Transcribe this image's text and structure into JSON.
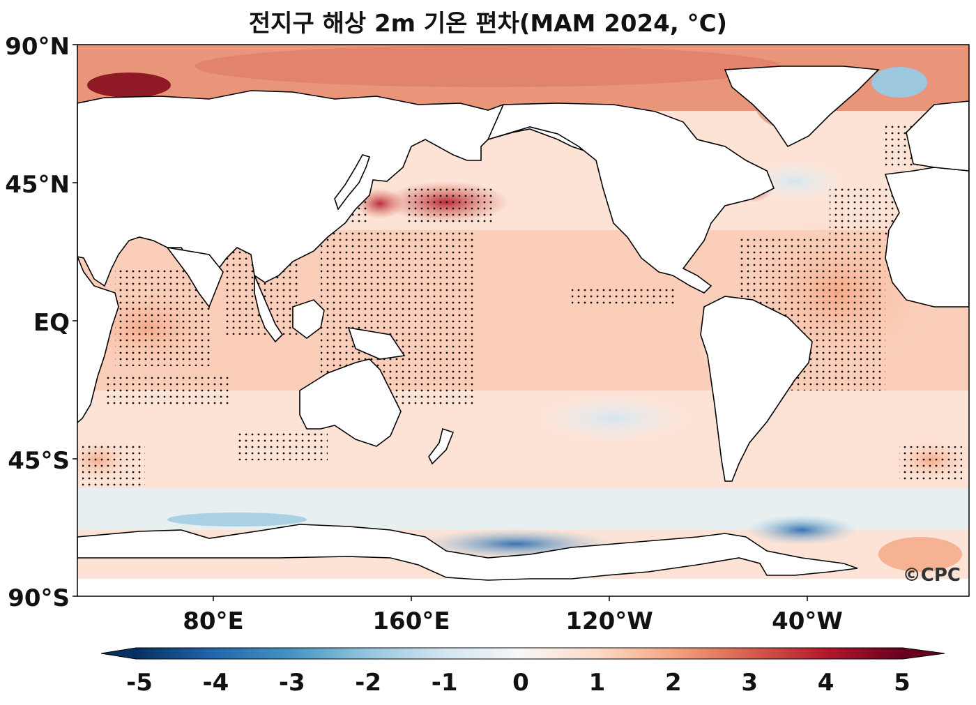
{
  "title": "전지구 해상 2m 기온 편차(MAM 2024, °C)",
  "watermark": "©CPC",
  "lat_labels": [
    "90°N",
    "45°N",
    "EQ",
    "45°S",
    "90°S"
  ],
  "lon_labels": [
    "80°E",
    "160°E",
    "120°W",
    "40°W"
  ],
  "colorbar": {
    "ticks": [
      "-5",
      "-4",
      "-3",
      "-2",
      "-1",
      "0",
      "1",
      "2",
      "3",
      "4",
      "5"
    ],
    "min": -5,
    "max": 5,
    "colormap": "RdBu_r",
    "extend": "both",
    "colors": [
      "#053061",
      "#2166ac",
      "#4393c3",
      "#92c5de",
      "#d1e5f0",
      "#f7f7f7",
      "#fddbc7",
      "#f4a582",
      "#d6604d",
      "#b2182b",
      "#67001f"
    ]
  },
  "map": {
    "projection": "PlateCarree",
    "central_longitude": 180,
    "lon_range": [
      30,
      390
    ],
    "lat_range": [
      -90,
      90
    ],
    "land_color": "#ffffff",
    "coastline_color": "#000000",
    "stippling": "statistically significant regions marked with dots"
  }
}
